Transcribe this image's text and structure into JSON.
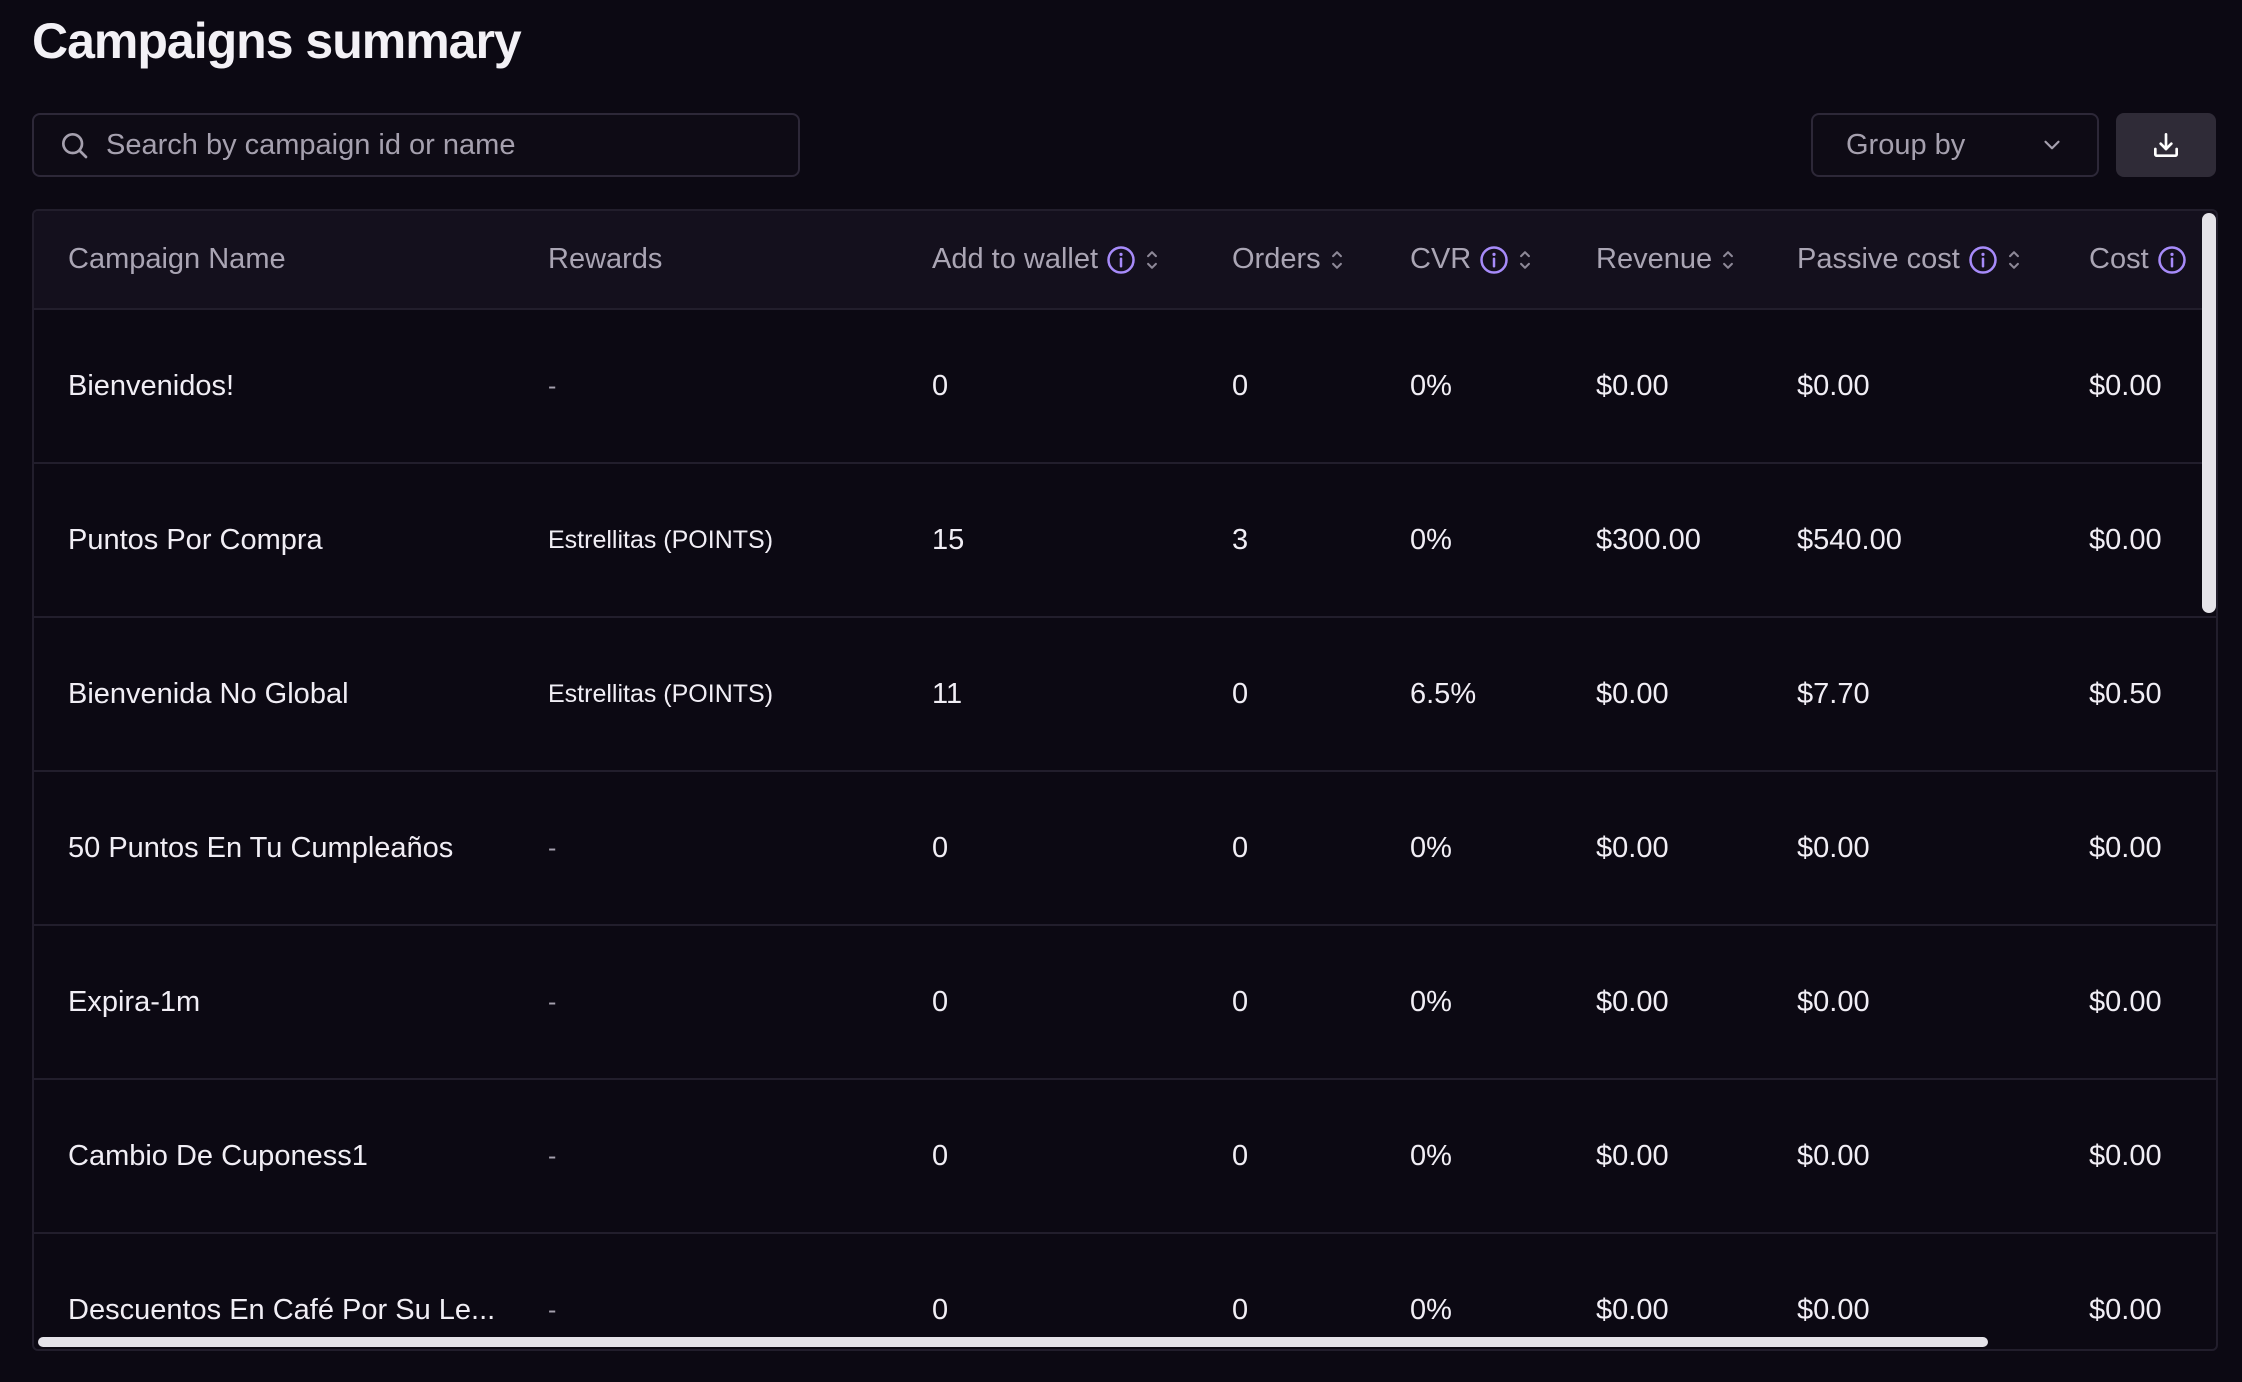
{
  "page": {
    "title": "Campaigns summary"
  },
  "toolbar": {
    "search_placeholder": "Search by campaign id or name",
    "group_by_label": "Group by",
    "download_icon": "download-icon"
  },
  "colors": {
    "background": "#0c0913",
    "info_accent": "#a78bfa",
    "download_button_bg": "#2f2b37"
  },
  "table": {
    "columns": [
      {
        "label": "Campaign Name",
        "info": false,
        "sortable": false
      },
      {
        "label": "Rewards",
        "info": false,
        "sortable": false
      },
      {
        "label": "Add to wallet",
        "info": true,
        "sortable": true
      },
      {
        "label": "Orders",
        "info": false,
        "sortable": true
      },
      {
        "label": "CVR",
        "info": true,
        "sortable": true
      },
      {
        "label": "Revenue",
        "info": false,
        "sortable": true
      },
      {
        "label": "Passive cost",
        "info": true,
        "sortable": true
      },
      {
        "label": "Cost",
        "info": true,
        "sortable": false
      }
    ],
    "rows": [
      {
        "name": "Bienvenidos!",
        "rewards": "-",
        "add_to_wallet": "0",
        "orders": "0",
        "cvr": "0%",
        "revenue": "$0.00",
        "passive_cost": "$0.00",
        "cost": "$0.00"
      },
      {
        "name": "Puntos Por Compra",
        "rewards": "Estrellitas (POINTS)",
        "add_to_wallet": "15",
        "orders": "3",
        "cvr": "0%",
        "revenue": "$300.00",
        "passive_cost": "$540.00",
        "cost": "$0.00"
      },
      {
        "name": "Bienvenida No Global",
        "rewards": "Estrellitas (POINTS)",
        "add_to_wallet": "11",
        "orders": "0",
        "cvr": "6.5%",
        "revenue": "$0.00",
        "passive_cost": "$7.70",
        "cost": "$0.50"
      },
      {
        "name": "50 Puntos En Tu Cumpleaños",
        "rewards": "-",
        "add_to_wallet": "0",
        "orders": "0",
        "cvr": "0%",
        "revenue": "$0.00",
        "passive_cost": "$0.00",
        "cost": "$0.00"
      },
      {
        "name": "Expira-1m",
        "rewards": "-",
        "add_to_wallet": "0",
        "orders": "0",
        "cvr": "0%",
        "revenue": "$0.00",
        "passive_cost": "$0.00",
        "cost": "$0.00"
      },
      {
        "name": "Cambio De Cuponess1",
        "rewards": "-",
        "add_to_wallet": "0",
        "orders": "0",
        "cvr": "0%",
        "revenue": "$0.00",
        "passive_cost": "$0.00",
        "cost": "$0.00"
      },
      {
        "name": "Descuentos En Café Por Su Le...",
        "rewards": "-",
        "add_to_wallet": "0",
        "orders": "0",
        "cvr": "0%",
        "revenue": "$0.00",
        "passive_cost": "$0.00",
        "cost": "$0.00"
      }
    ]
  }
}
